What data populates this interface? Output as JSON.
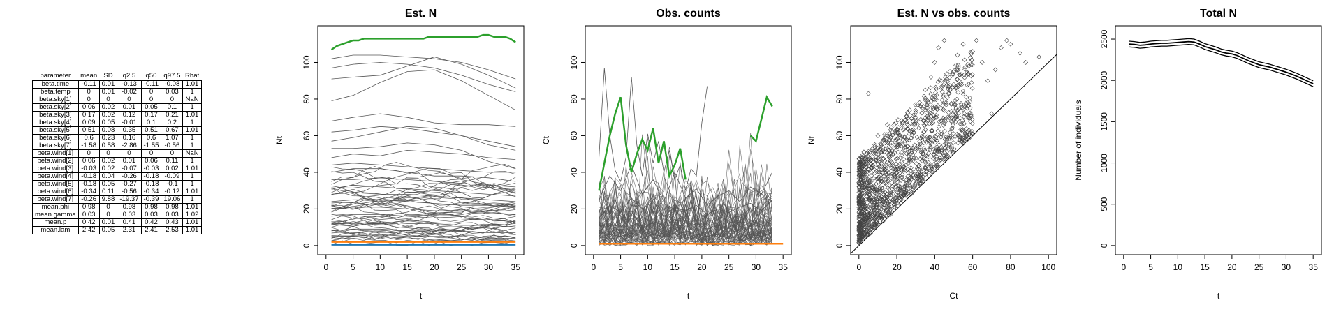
{
  "table": {
    "headers": [
      "parameter",
      "mean",
      "SD",
      "q2.5",
      "q50",
      "q97.5",
      "Rhat"
    ],
    "rows": [
      [
        "beta.time",
        "-0.11",
        "0.01",
        "-0.13",
        "-0.11",
        "-0.08",
        "1.01"
      ],
      [
        "beta.temp",
        "0",
        "0.01",
        "-0.02",
        "0",
        "0.03",
        "1"
      ],
      [
        "beta.sky[1]",
        "0",
        "0",
        "0",
        "0",
        "0",
        "NaN"
      ],
      [
        "beta.sky[2]",
        "0.06",
        "0.02",
        "0.01",
        "0.05",
        "0.1",
        "1"
      ],
      [
        "beta.sky[3]",
        "0.17",
        "0.02",
        "0.12",
        "0.17",
        "0.21",
        "1.01"
      ],
      [
        "beta.sky[4]",
        "0.09",
        "0.05",
        "-0.01",
        "0.1",
        "0.2",
        "1"
      ],
      [
        "beta.sky[5]",
        "0.51",
        "0.08",
        "0.35",
        "0.51",
        "0.67",
        "1.01"
      ],
      [
        "beta.sky[6]",
        "0.6",
        "0.23",
        "0.16",
        "0.6",
        "1.07",
        "1"
      ],
      [
        "beta.sky[7]",
        "-1.58",
        "0.58",
        "-2.86",
        "-1.55",
        "-0.56",
        "1"
      ],
      [
        "beta.wind[1]",
        "0",
        "0",
        "0",
        "0",
        "0",
        "NaN"
      ],
      [
        "beta.wind[2]",
        "0.06",
        "0.02",
        "0.01",
        "0.06",
        "0.11",
        "1"
      ],
      [
        "beta.wind[3]",
        "-0.03",
        "0.02",
        "-0.07",
        "-0.03",
        "0.02",
        "1.01"
      ],
      [
        "beta.wind[4]",
        "-0.18",
        "0.04",
        "-0.26",
        "-0.18",
        "-0.09",
        "1"
      ],
      [
        "beta.wind[5]",
        "-0.18",
        "0.05",
        "-0.27",
        "-0.18",
        "-0.1",
        "1"
      ],
      [
        "beta.wind[6]",
        "-0.34",
        "0.11",
        "-0.56",
        "-0.34",
        "-0.12",
        "1.01"
      ],
      [
        "beta.wind[7]",
        "-0.26",
        "9.88",
        "-19.37",
        "-0.39",
        "19.06",
        "1"
      ],
      [
        "mean.phi",
        "0.98",
        "0",
        "0.98",
        "0.98",
        "0.98",
        "1.01"
      ],
      [
        "mean.gamma",
        "0.03",
        "0",
        "0.03",
        "0.03",
        "0.03",
        "1.02"
      ],
      [
        "mean.p",
        "0.42",
        "0.01",
        "0.41",
        "0.42",
        "0.43",
        "1.01"
      ],
      [
        "mean.lam",
        "2.42",
        "0.05",
        "2.31",
        "2.41",
        "2.53",
        "1.01"
      ]
    ]
  },
  "chart_data": [
    {
      "type": "line",
      "title": "Est. N",
      "xlabel": "t",
      "ylabel": "Nt",
      "xlim": [
        0,
        35
      ],
      "ylim": [
        0,
        115
      ],
      "xticks": [
        0,
        5,
        10,
        15,
        20,
        25,
        30,
        35
      ],
      "yticks": [
        0,
        20,
        40,
        60,
        80,
        100
      ],
      "series_color": "#555555",
      "highlight_color": "#2ca02c",
      "flat_colors": [
        "#ff7f0e",
        "#1f77b4"
      ],
      "highlight": {
        "x": [
          1,
          2,
          3,
          4,
          5,
          6,
          7,
          8,
          10,
          12,
          14,
          16,
          18,
          19,
          20,
          22,
          24,
          26,
          28,
          29,
          30,
          31,
          32,
          33,
          34,
          35
        ],
        "y": [
          107,
          109,
          110,
          111,
          112,
          112,
          113,
          113,
          113,
          113,
          113,
          113,
          113,
          114,
          114,
          114,
          114,
          114,
          114,
          115,
          115,
          114,
          114,
          114,
          113,
          111
        ]
      },
      "flat_series": [
        2,
        0.5
      ],
      "sampled_series_note": "",
      "representative_series": [
        {
          "x": [
            1,
            5,
            10,
            15,
            20,
            25,
            30,
            35
          ],
          "y": [
            102,
            104,
            104,
            103,
            102,
            100,
            96,
            91
          ]
        },
        {
          "x": [
            1,
            5,
            10,
            15,
            20,
            25,
            30,
            35
          ],
          "y": [
            97,
            99,
            100,
            99,
            97,
            93,
            88,
            84
          ]
        },
        {
          "x": [
            1,
            5,
            10,
            15,
            20,
            25,
            30,
            35
          ],
          "y": [
            91,
            92,
            93,
            98,
            103,
            99,
            93,
            86
          ]
        },
        {
          "x": [
            1,
            5,
            10,
            15,
            20,
            25,
            30,
            35
          ],
          "y": [
            79,
            82,
            89,
            95,
            96,
            90,
            82,
            74
          ]
        },
        {
          "x": [
            1,
            5,
            10,
            15,
            20,
            25,
            30,
            35
          ],
          "y": [
            68,
            70,
            72,
            70,
            67,
            66,
            66,
            65
          ]
        },
        {
          "x": [
            1,
            5,
            10,
            15,
            20,
            25,
            30,
            35
          ],
          "y": [
            62,
            63,
            65,
            64,
            62,
            60,
            57,
            54
          ]
        },
        {
          "x": [
            1,
            5,
            10,
            15,
            20,
            25,
            30,
            35
          ],
          "y": [
            57,
            59,
            62,
            65,
            64,
            60,
            55,
            52
          ]
        },
        {
          "x": [
            1,
            5,
            10,
            15,
            20,
            25,
            30,
            35
          ],
          "y": [
            53,
            53,
            54,
            56,
            55,
            52,
            46,
            42
          ]
        },
        {
          "x": [
            1,
            5,
            10,
            15,
            20,
            25,
            30,
            35
          ],
          "y": [
            48,
            50,
            49,
            52,
            51,
            50,
            48,
            47
          ]
        },
        {
          "x": [
            1,
            5,
            10,
            15,
            20,
            25,
            30,
            35
          ],
          "y": [
            44,
            45,
            44,
            43,
            42,
            41,
            40,
            40
          ]
        },
        {
          "x": [
            1,
            5,
            10,
            15,
            20,
            25,
            30,
            35
          ],
          "y": [
            40,
            42,
            42,
            40,
            38,
            38,
            37,
            35
          ]
        },
        {
          "x": [
            1,
            5,
            10,
            15,
            20,
            25,
            30,
            35
          ],
          "y": [
            36,
            36,
            37,
            36,
            35,
            34,
            33,
            32
          ]
        },
        {
          "x": [
            1,
            5,
            10,
            15,
            20,
            25,
            30,
            35
          ],
          "y": [
            31,
            33,
            32,
            31,
            30,
            29,
            28,
            27
          ]
        },
        {
          "x": [
            1,
            5,
            10,
            15,
            20,
            25,
            30,
            35
          ],
          "y": [
            28,
            29,
            28,
            28,
            27,
            26,
            25,
            24
          ]
        },
        {
          "x": [
            1,
            5,
            10,
            15,
            20,
            25,
            30,
            35
          ],
          "y": [
            24,
            25,
            25,
            24,
            23,
            22,
            22,
            21
          ]
        },
        {
          "x": [
            1,
            5,
            10,
            15,
            20,
            25,
            30,
            35
          ],
          "y": [
            20,
            21,
            21,
            20,
            19,
            19,
            18,
            17
          ]
        },
        {
          "x": [
            1,
            5,
            10,
            15,
            20,
            25,
            30,
            35
          ],
          "y": [
            16,
            17,
            17,
            16,
            15,
            15,
            14,
            13
          ]
        },
        {
          "x": [
            1,
            5,
            10,
            15,
            20,
            25,
            30,
            35
          ],
          "y": [
            12,
            12,
            13,
            12,
            12,
            11,
            11,
            10
          ]
        },
        {
          "x": [
            1,
            5,
            10,
            15,
            20,
            25,
            30,
            35
          ],
          "y": [
            8,
            9,
            9,
            8,
            8,
            8,
            7,
            7
          ]
        },
        {
          "x": [
            1,
            5,
            10,
            15,
            20,
            25,
            30,
            35
          ],
          "y": [
            5,
            5,
            6,
            5,
            5,
            5,
            4,
            4
          ]
        }
      ]
    },
    {
      "type": "line",
      "title": "Obs. counts",
      "xlabel": "t",
      "ylabel": "Ct",
      "xlim": [
        0,
        35
      ],
      "ylim": [
        0,
        115
      ],
      "xticks": [
        0,
        5,
        10,
        15,
        20,
        25,
        30,
        35
      ],
      "yticks": [
        0,
        20,
        40,
        60,
        80,
        100
      ],
      "series_color": "#555555",
      "highlight_color": "#2ca02c",
      "flat_colors": [
        "#ff7f0e"
      ],
      "highlight_segments": [
        {
          "x": [
            1,
            2,
            3,
            4,
            5,
            6,
            7,
            8,
            9,
            10,
            11,
            12,
            13,
            14,
            15,
            16,
            17
          ],
          "y": [
            30,
            45,
            60,
            72,
            81,
            55,
            40,
            50,
            58,
            52,
            64,
            45,
            57,
            38,
            44,
            53,
            36
          ]
        },
        {
          "x": [
            29,
            30,
            31,
            32,
            33
          ],
          "y": [
            60,
            57,
            69,
            81,
            76
          ]
        }
      ],
      "flat_series": [
        1
      ],
      "representative_series": [
        {
          "x": [
            1,
            2,
            3,
            4,
            5,
            6,
            7,
            8,
            9,
            10,
            11,
            12,
            13,
            14,
            15,
            16,
            17,
            18,
            19,
            20,
            21
          ],
          "y": [
            48,
            97,
            60,
            41,
            35,
            48,
            92,
            55,
            38,
            61,
            45,
            57,
            40,
            52,
            36,
            44,
            30,
            42,
            38,
            67,
            87
          ]
        },
        {
          "x": [
            1,
            3,
            5,
            7,
            9,
            11,
            13,
            15,
            17,
            19,
            21,
            23,
            25,
            27,
            29,
            31,
            33
          ],
          "y": [
            25,
            38,
            30,
            44,
            28,
            36,
            24,
            40,
            26,
            31,
            22,
            27,
            30,
            24,
            32,
            28,
            40
          ]
        },
        {
          "x": [
            1,
            3,
            5,
            7,
            9,
            11,
            13,
            15,
            17,
            19,
            21,
            23,
            25,
            27,
            29,
            31,
            33
          ],
          "y": [
            15,
            22,
            18,
            26,
            20,
            24,
            16,
            21,
            19,
            22,
            17,
            20,
            18,
            21,
            23,
            19,
            25
          ]
        },
        {
          "x": [
            1,
            3,
            5,
            7,
            9,
            11,
            13,
            15,
            17,
            19,
            21,
            23,
            25,
            27,
            29,
            31,
            33
          ],
          "y": [
            8,
            12,
            10,
            15,
            9,
            13,
            11,
            14,
            10,
            12,
            9,
            11,
            10,
            13,
            12,
            10,
            14
          ]
        },
        {
          "x": [
            1,
            3,
            5,
            7,
            9,
            11,
            13,
            15,
            17,
            19,
            21,
            23,
            25,
            27,
            29,
            31,
            33
          ],
          "y": [
            4,
            6,
            5,
            7,
            4,
            6,
            5,
            7,
            4,
            6,
            5,
            6,
            4,
            5,
            6,
            5,
            7
          ]
        }
      ]
    },
    {
      "type": "scatter",
      "title": "Est. N vs obs. counts",
      "xlabel": "Ct",
      "ylabel": "Nt",
      "xlim": [
        0,
        100
      ],
      "ylim": [
        0,
        115
      ],
      "xticks": [
        0,
        20,
        40,
        60,
        80,
        100
      ],
      "yticks": [
        0,
        20,
        40,
        60,
        80,
        100
      ],
      "identity_line": true,
      "marker": "diamond",
      "sample_points": [
        [
          2,
          5
        ],
        [
          4,
          12
        ],
        [
          6,
          18
        ],
        [
          8,
          25
        ],
        [
          10,
          30
        ],
        [
          12,
          35
        ],
        [
          14,
          40
        ],
        [
          16,
          45
        ],
        [
          18,
          50
        ],
        [
          20,
          55
        ],
        [
          22,
          48
        ],
        [
          25,
          58
        ],
        [
          28,
          62
        ],
        [
          30,
          70
        ],
        [
          32,
          78
        ],
        [
          35,
          85
        ],
        [
          38,
          92
        ],
        [
          40,
          100
        ],
        [
          42,
          108
        ],
        [
          45,
          112
        ],
        [
          48,
          95
        ],
        [
          50,
          88
        ],
        [
          52,
          104
        ],
        [
          55,
          110
        ],
        [
          58,
          98
        ],
        [
          60,
          106
        ],
        [
          62,
          112
        ],
        [
          65,
          100
        ],
        [
          68,
          90
        ],
        [
          70,
          72
        ],
        [
          72,
          96
        ],
        [
          75,
          108
        ],
        [
          78,
          112
        ],
        [
          80,
          110
        ],
        [
          85,
          105
        ],
        [
          88,
          100
        ],
        [
          95,
          103
        ],
        [
          5,
          83
        ],
        [
          10,
          60
        ],
        [
          15,
          66
        ]
      ]
    },
    {
      "type": "line",
      "title": "Total N",
      "xlabel": "t",
      "ylabel": "Number of individuals",
      "xlim": [
        0,
        35
      ],
      "ylim": [
        0,
        2550
      ],
      "xticks": [
        0,
        5,
        10,
        15,
        20,
        25,
        30,
        35
      ],
      "yticks": [
        0,
        500,
        1000,
        1500,
        2000,
        2500
      ],
      "x": [
        1,
        2,
        3,
        4,
        5,
        6,
        7,
        8,
        9,
        10,
        11,
        12,
        13,
        14,
        15,
        16,
        17,
        18,
        19,
        20,
        21,
        22,
        23,
        24,
        25,
        26,
        27,
        28,
        29,
        30,
        31,
        32,
        33,
        34,
        35
      ],
      "mean": [
        2440,
        2435,
        2425,
        2430,
        2440,
        2445,
        2450,
        2450,
        2455,
        2460,
        2465,
        2470,
        2465,
        2440,
        2410,
        2390,
        2370,
        2345,
        2330,
        2320,
        2300,
        2270,
        2240,
        2215,
        2190,
        2175,
        2160,
        2140,
        2120,
        2100,
        2075,
        2050,
        2020,
        1990,
        1960
      ],
      "band_halfwidth": 35
    }
  ]
}
